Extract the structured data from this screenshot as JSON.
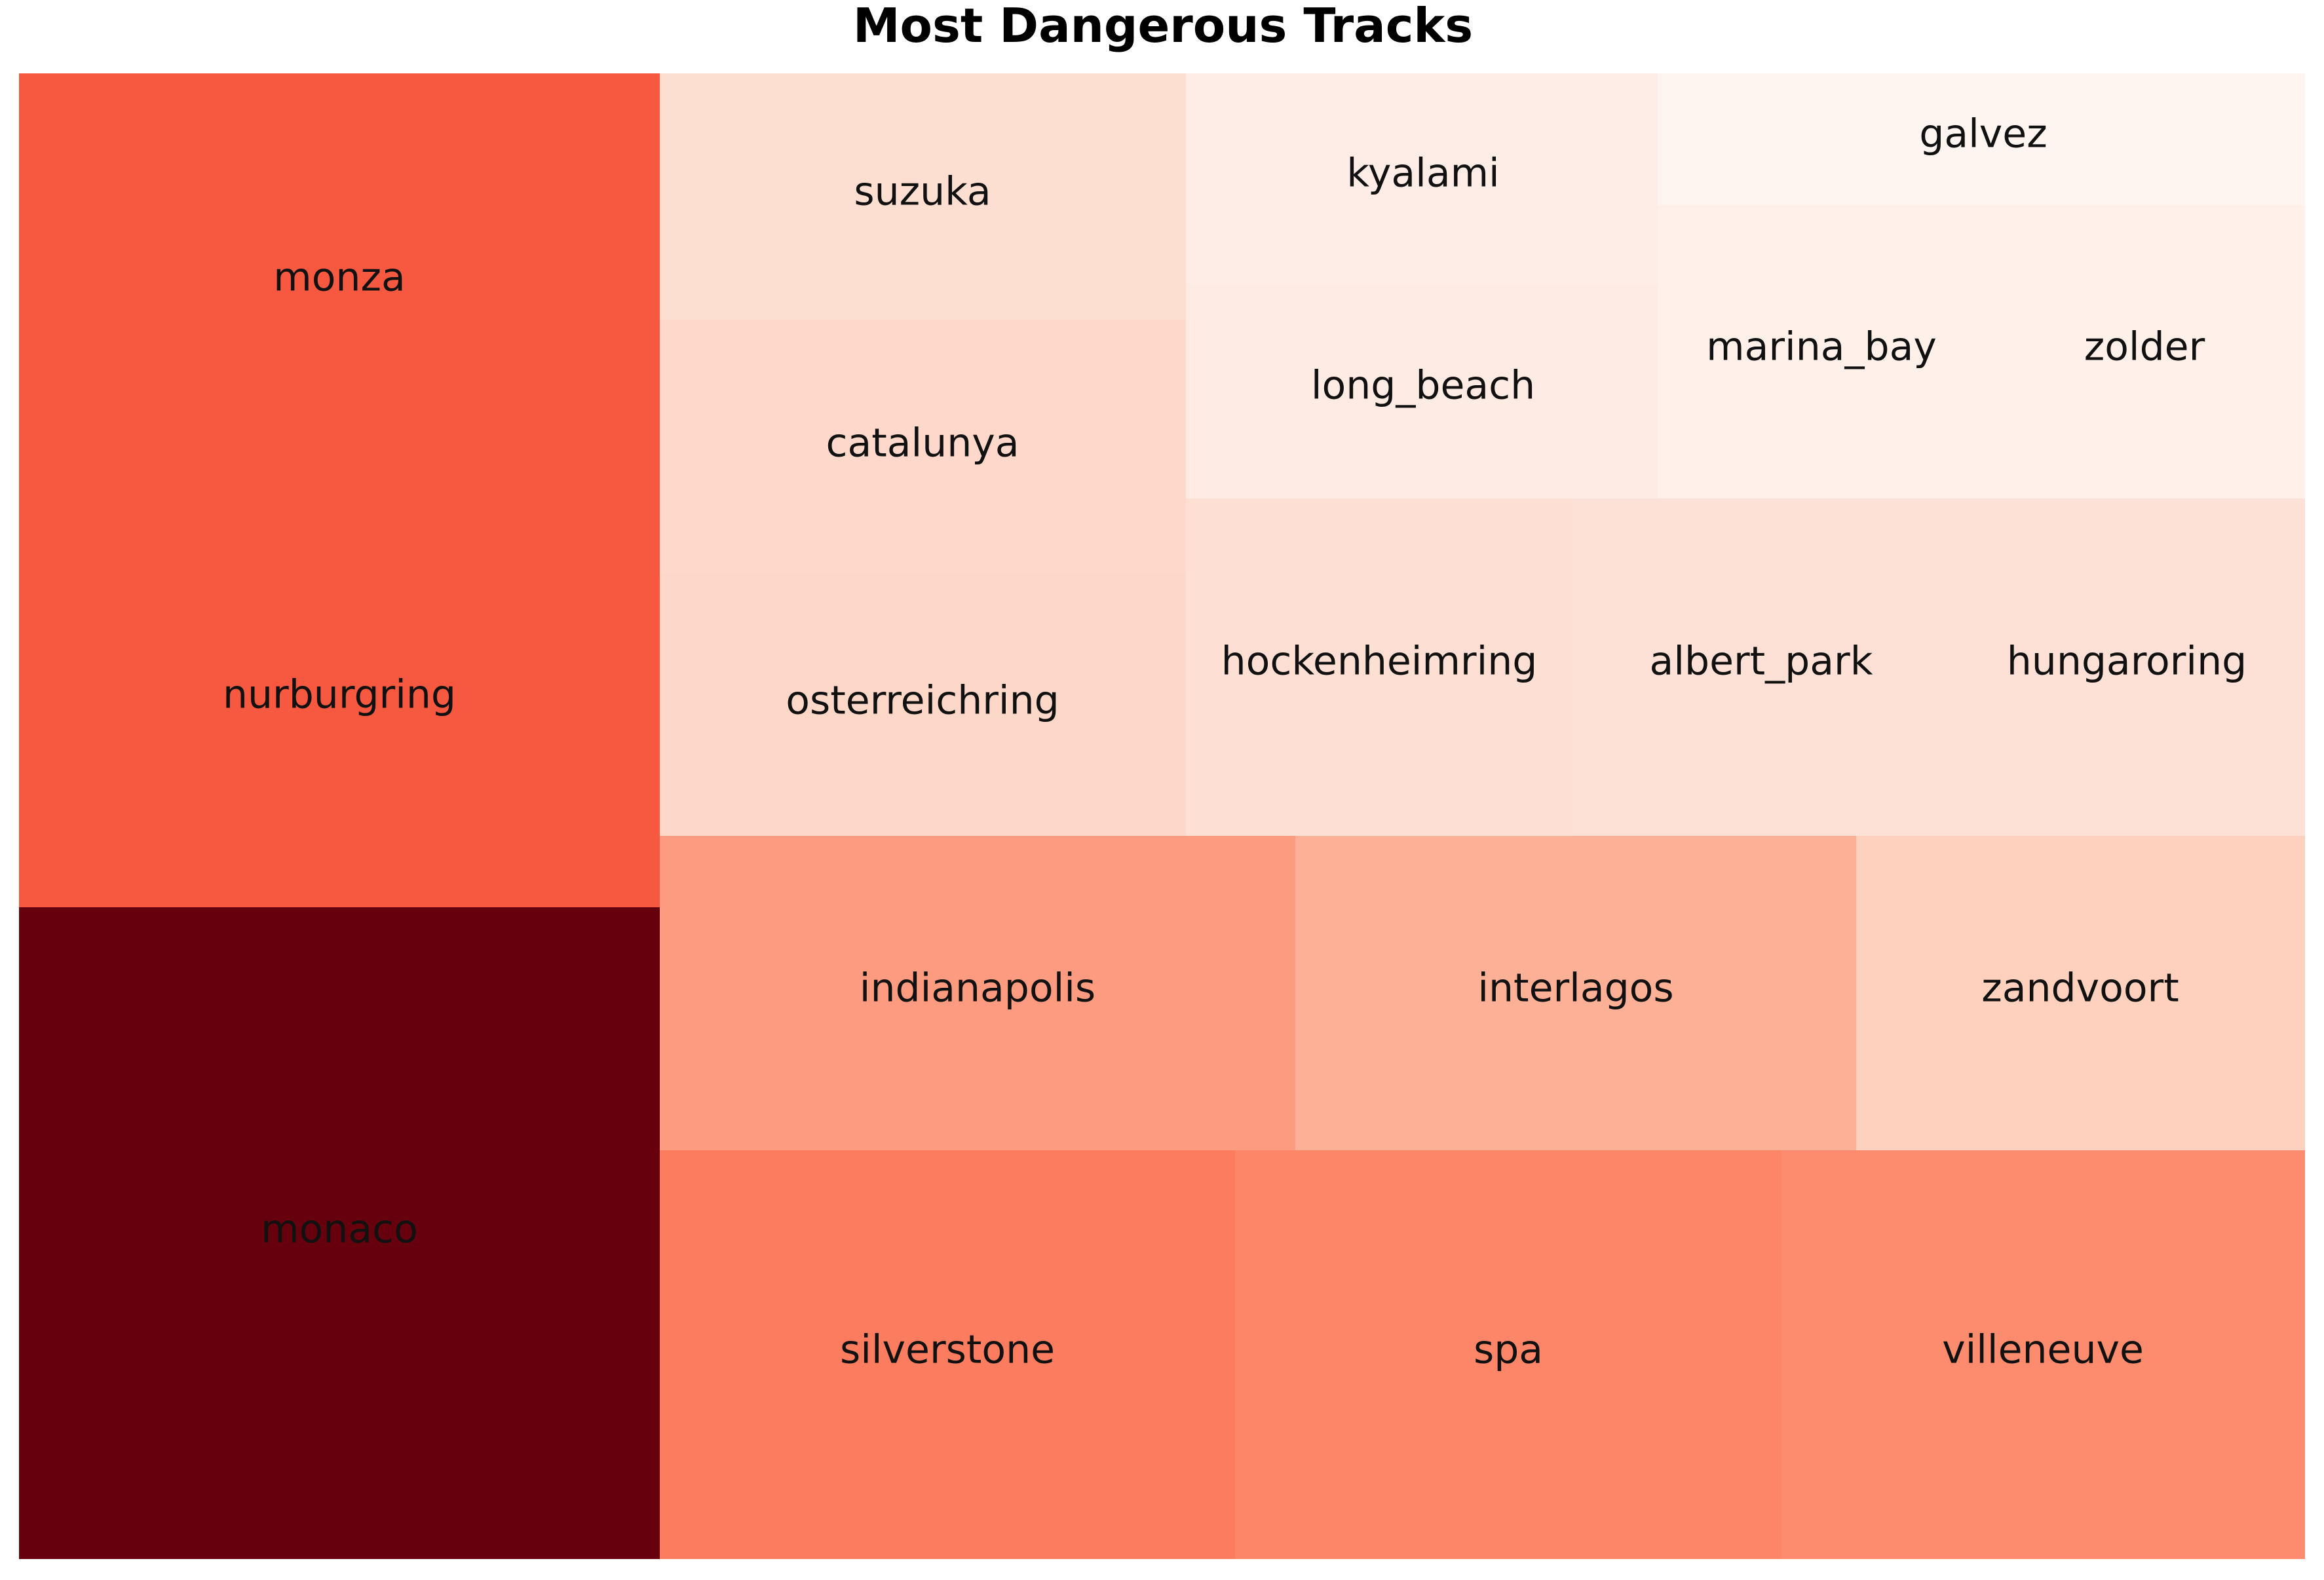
{
  "chart_data": {
    "type": "treemap",
    "title": "Most Dangerous Tracks",
    "colormap": "Reds",
    "items": [
      {
        "label": "monaco",
        "color": "#67000d"
      },
      {
        "label": "nurburgring",
        "color": "#f65940"
      },
      {
        "label": "monza",
        "color": "#f65940"
      },
      {
        "label": "silverstone",
        "color": "#fc7c5f"
      },
      {
        "label": "spa",
        "color": "#fc8667"
      },
      {
        "label": "villeneuve",
        "color": "#fc8c6d"
      },
      {
        "label": "indianapolis",
        "color": "#fc9b7f"
      },
      {
        "label": "interlagos",
        "color": "#fcb095"
      },
      {
        "label": "zandvoort",
        "color": "#fdd1be"
      },
      {
        "label": "osterreichring",
        "color": "#fdd8c8"
      },
      {
        "label": "catalunya",
        "color": "#fdd8cb"
      },
      {
        "label": "suzuka",
        "color": "#fddfd2"
      },
      {
        "label": "hockenheimring",
        "color": "#fedfd3"
      },
      {
        "label": "albert_park",
        "color": "#fee1d6"
      },
      {
        "label": "hungaroring",
        "color": "#fee1d6"
      },
      {
        "label": "long_beach",
        "color": "#feebe3"
      },
      {
        "label": "kyalami",
        "color": "#feede6"
      },
      {
        "label": "marina_bay",
        "color": "#fff0e9"
      },
      {
        "label": "zolder",
        "color": "#fff0e9"
      },
      {
        "label": "galvez",
        "color": "#fff5f0"
      }
    ]
  }
}
